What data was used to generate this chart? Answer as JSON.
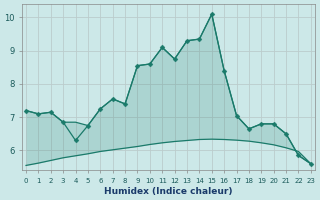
{
  "xlabel": "Humidex (Indice chaleur)",
  "background_color": "#cce8e8",
  "grid_color": "#bbcccc",
  "line_color": "#1a7a6a",
  "x": [
    0,
    1,
    2,
    3,
    4,
    5,
    6,
    7,
    8,
    9,
    10,
    11,
    12,
    13,
    14,
    15,
    16,
    17,
    18,
    19,
    20,
    21,
    22,
    23
  ],
  "y_main": [
    7.2,
    7.1,
    7.15,
    6.85,
    6.3,
    6.75,
    7.25,
    7.55,
    7.4,
    8.55,
    8.6,
    9.1,
    8.75,
    9.3,
    9.35,
    10.1,
    8.4,
    7.05,
    6.65,
    6.8,
    6.8,
    6.5,
    5.85,
    5.6
  ],
  "y_lower": [
    5.55,
    5.62,
    5.7,
    5.78,
    5.84,
    5.9,
    5.97,
    6.02,
    6.07,
    6.12,
    6.18,
    6.23,
    6.27,
    6.3,
    6.33,
    6.34,
    6.33,
    6.31,
    6.28,
    6.23,
    6.17,
    6.08,
    5.97,
    5.6
  ],
  "y_envelope": [
    7.2,
    7.1,
    7.15,
    6.85,
    6.85,
    6.75,
    7.25,
    7.55,
    7.4,
    8.55,
    8.6,
    9.1,
    8.75,
    9.3,
    9.35,
    10.1,
    8.4,
    7.05,
    6.65,
    6.8,
    6.8,
    6.5,
    5.85,
    5.6
  ],
  "ylim": [
    5.4,
    10.4
  ],
  "yticks": [
    6,
    7,
    8,
    9,
    10
  ],
  "xlim": [
    -0.3,
    23.3
  ],
  "figsize": [
    3.2,
    2.0
  ],
  "dpi": 100
}
